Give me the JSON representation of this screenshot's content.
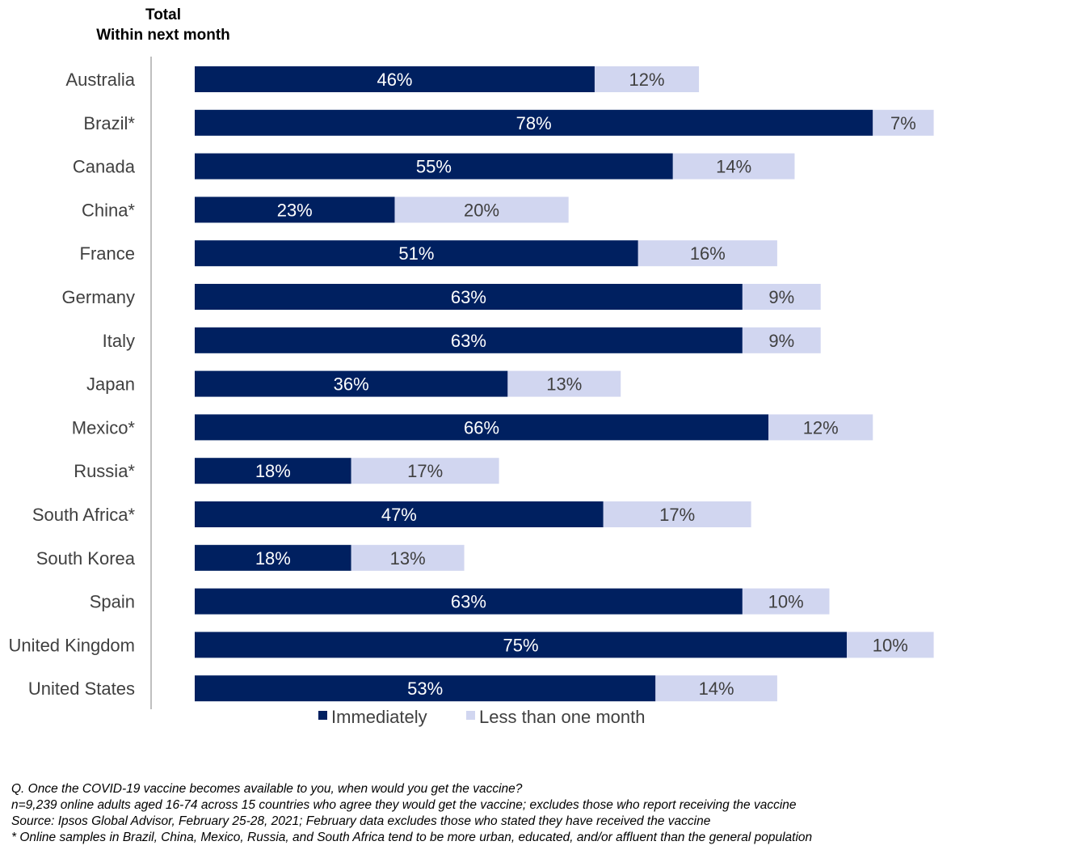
{
  "header": {
    "line1": "Total",
    "line2": "Within next month"
  },
  "chart_data": {
    "type": "bar",
    "orientation": "horizontal",
    "stacked": true,
    "categories": [
      "Australia",
      "Brazil*",
      "Canada",
      "China*",
      "France",
      "Germany",
      "Italy",
      "Japan",
      "Mexico*",
      "Russia*",
      "South Africa*",
      "South Korea",
      "Spain",
      "United Kingdom",
      "United States"
    ],
    "series": [
      {
        "name": "Immediately",
        "color": "#002060",
        "values": [
          46,
          78,
          55,
          23,
          51,
          63,
          63,
          36,
          66,
          18,
          47,
          18,
          63,
          75,
          53
        ]
      },
      {
        "name": "Less than one month",
        "color": "#D1D6F0",
        "values": [
          12,
          7,
          14,
          20,
          16,
          9,
          9,
          13,
          12,
          17,
          17,
          13,
          10,
          10,
          14
        ]
      }
    ],
    "value_suffix": "%",
    "xlim": [
      0,
      100
    ],
    "grid": false,
    "legend_position": "bottom"
  },
  "footnotes": [
    "Q. Once the COVID-19 vaccine becomes available to you, when would you get the vaccine?",
    "n=9,239 online adults aged 16-74 across 15 countries who agree they would get the vaccine; excludes those who report receiving the vaccine",
    "Source: Ipsos Global Advisor, February 25-28, 2021; February data excludes those who stated they have received the vaccine",
    "* Online samples in Brazil, China, Mexico, Russia, and South Africa tend to be more urban, educated, and/or affluent than the general population"
  ]
}
